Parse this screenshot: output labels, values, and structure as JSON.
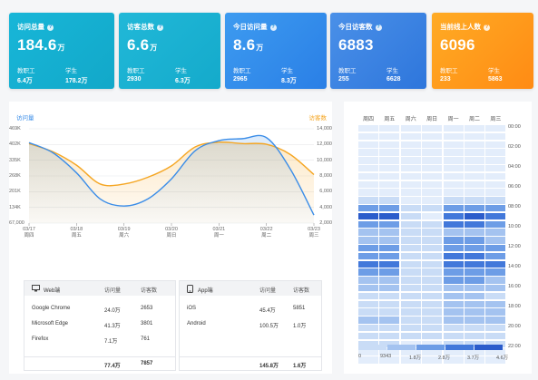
{
  "cards": [
    {
      "label": "访问总量",
      "value": "184.6",
      "unit": "万",
      "s1_label": "教职工",
      "s1_value": "6.4万",
      "s2_label": "学生",
      "s2_value": "178.2万"
    },
    {
      "label": "访客总数",
      "value": "6.6",
      "unit": "万",
      "s1_label": "教职工",
      "s1_value": "2930",
      "s2_label": "学生",
      "s2_value": "6.3万"
    },
    {
      "label": "今日访问量",
      "value": "8.6",
      "unit": "万",
      "s1_label": "教职工",
      "s1_value": "2965",
      "s2_label": "学生",
      "s2_value": "8.3万"
    },
    {
      "label": "今日访客数",
      "value": "6883",
      "unit": "",
      "s1_label": "教职工",
      "s1_value": "255",
      "s2_label": "学生",
      "s2_value": "6628"
    },
    {
      "label": "当前线上人数",
      "value": "6096",
      "unit": "",
      "s1_label": "教职工",
      "s1_value": "233",
      "s2_label": "学生",
      "s2_value": "5863"
    }
  ],
  "colors": {
    "visits": "#3b8de8",
    "visitors": "#f5a623",
    "card_cyan": "#16b0d2",
    "card_blue": "#2f80e6",
    "card_orange": "#ff9418"
  },
  "chart_data": {
    "type": "line",
    "categories": [
      "03/17\n周四",
      "03/18\n周五",
      "03/19\n周六",
      "03/20\n周日",
      "03/21\n周一",
      "03/22\n周二",
      "03/23\n周三"
    ],
    "x_labels": [
      {
        "date": "03/17",
        "day": "周四"
      },
      {
        "date": "03/18",
        "day": "周五"
      },
      {
        "date": "03/19",
        "day": "周六"
      },
      {
        "date": "03/20",
        "day": "周日"
      },
      {
        "date": "03/21",
        "day": "周一"
      },
      {
        "date": "03/22",
        "day": "周二"
      },
      {
        "date": "03/23",
        "day": "周三"
      }
    ],
    "series": [
      {
        "name": "访问量",
        "axis": "left",
        "x": [
          0,
          0.5,
          1,
          1.5,
          2,
          2.5,
          3,
          3.5,
          4,
          4.5,
          5,
          5.5,
          6
        ],
        "values": [
          400000,
          350000,
          250000,
          120000,
          85000,
          120000,
          220000,
          360000,
          410000,
          420000,
          425000,
          270000,
          40000
        ]
      },
      {
        "name": "访客数",
        "axis": "right",
        "x": [
          0,
          0.5,
          1,
          1.5,
          2,
          2.5,
          3,
          3.5,
          4,
          4.5,
          5,
          5.5,
          6
        ],
        "values": [
          11800,
          10600,
          8600,
          5800,
          5800,
          6800,
          8500,
          11300,
          12000,
          11800,
          11700,
          10200,
          7200
        ]
      }
    ],
    "y_left": {
      "label": "访问量",
      "ticks": [
        "469K",
        "402K",
        "335K",
        "268K",
        "201K",
        "134K",
        "67,000"
      ],
      "min": 0,
      "max": 469000
    },
    "y_right": {
      "label": "访客数",
      "ticks": [
        "14,000",
        "12,000",
        "10,000",
        "8,000",
        "6,000",
        "4,000",
        "2,000"
      ],
      "min": 0,
      "max": 14000
    }
  },
  "web_table": {
    "title": "Web端",
    "col1": "访问量",
    "col2": "访客数",
    "rows": [
      {
        "name": "Google Chrome",
        "v1": "24.0万",
        "v2": "2653"
      },
      {
        "name": "Microsoft Edge",
        "v1": "41.3万",
        "v2": "3801"
      },
      {
        "name": "Firefox",
        "v1": "7.1万",
        "v2": "761"
      }
    ],
    "total": {
      "v1": "77.4万",
      "v2": "7857"
    }
  },
  "app_table": {
    "title": "App端",
    "col1": "访问量",
    "col2": "访客数",
    "rows": [
      {
        "name": "iOS",
        "v1": "45.4万",
        "v2": "5851"
      },
      {
        "name": "Android",
        "v1": "100.5万",
        "v2": "1.0万"
      }
    ],
    "total": {
      "v1": "145.8万",
      "v2": "1.6万"
    }
  },
  "heatmap": {
    "days": [
      "周四",
      "周五",
      "周六",
      "周日",
      "周一",
      "周二",
      "周三"
    ],
    "times": [
      "00:00",
      "02:00",
      "04:00",
      "06:00",
      "08:00",
      "10:00",
      "12:00",
      "14:00",
      "16:00",
      "18:00",
      "20:00",
      "22:00"
    ],
    "legend": [
      "0",
      "9343",
      "1.8万",
      "2.8万",
      "3.7万",
      "4.6万"
    ],
    "palette": [
      "#e3edfb",
      "#c9dcf6",
      "#a4c3f0",
      "#6d9de6",
      "#4278da",
      "#2b5ccb"
    ],
    "levels": [
      [
        0,
        0,
        0,
        0,
        0,
        0,
        0
      ],
      [
        0,
        0,
        0,
        0,
        0,
        0,
        0
      ],
      [
        0,
        0,
        0,
        0,
        0,
        0,
        0
      ],
      [
        0,
        0,
        0,
        0,
        0,
        0,
        0
      ],
      [
        0,
        0,
        0,
        0,
        0,
        0,
        0
      ],
      [
        0,
        0,
        0,
        0,
        0,
        0,
        0
      ],
      [
        0,
        0,
        0,
        0,
        0,
        0,
        0
      ],
      [
        0,
        0,
        0,
        0,
        0,
        0,
        0
      ],
      [
        0,
        0,
        0,
        0,
        0,
        0,
        0
      ],
      [
        1,
        1,
        0,
        0,
        1,
        1,
        1
      ],
      [
        3,
        3,
        1,
        1,
        3,
        3,
        3
      ],
      [
        5,
        5,
        1,
        0,
        4,
        5,
        4
      ],
      [
        3,
        3,
        1,
        1,
        4,
        4,
        3
      ],
      [
        2,
        2,
        1,
        1,
        2,
        2,
        2
      ],
      [
        2,
        2,
        1,
        1,
        3,
        3,
        2
      ],
      [
        3,
        3,
        1,
        1,
        3,
        3,
        3
      ],
      [
        3,
        3,
        1,
        1,
        4,
        4,
        3
      ],
      [
        4,
        4,
        1,
        1,
        4,
        4,
        4
      ],
      [
        3,
        3,
        1,
        1,
        3,
        3,
        3
      ],
      [
        2,
        2,
        1,
        1,
        3,
        3,
        2
      ],
      [
        2,
        2,
        1,
        1,
        2,
        2,
        2
      ],
      [
        1,
        1,
        1,
        1,
        2,
        2,
        1
      ],
      [
        1,
        1,
        1,
        1,
        2,
        2,
        2
      ],
      [
        1,
        1,
        1,
        1,
        2,
        2,
        2
      ],
      [
        2,
        2,
        1,
        1,
        2,
        2,
        2
      ],
      [
        1,
        1,
        1,
        1,
        1,
        1,
        1
      ],
      [
        1,
        1,
        1,
        1,
        1,
        1,
        1
      ],
      [
        1,
        1,
        0,
        0,
        1,
        1,
        1
      ],
      [
        0,
        0,
        0,
        0,
        0,
        0,
        0
      ],
      [
        0,
        0,
        0,
        0,
        0,
        0,
        0
      ]
    ]
  }
}
